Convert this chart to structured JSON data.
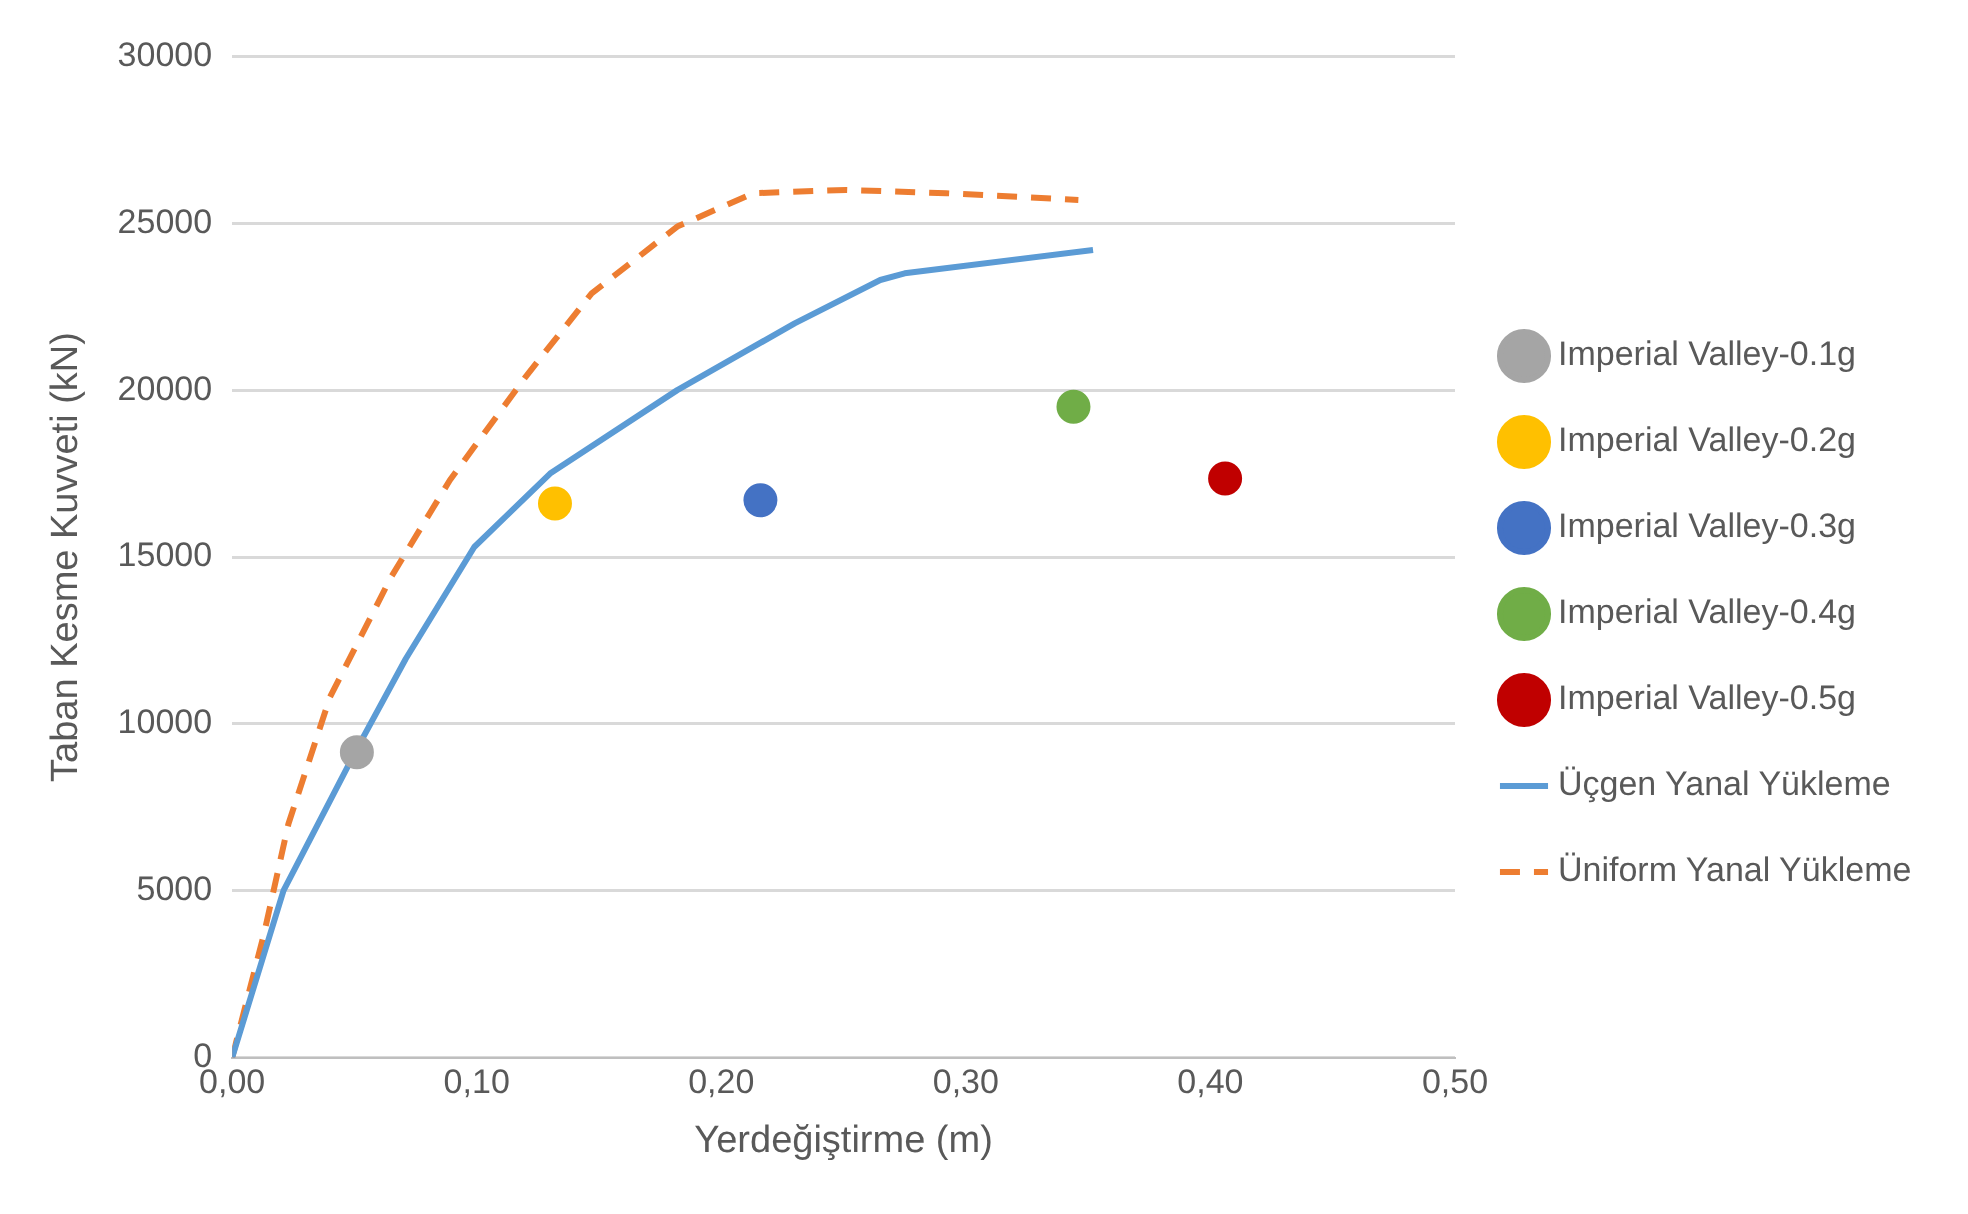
{
  "chart_data": {
    "type": "scatter",
    "xlabel": "Yerdeğiştirme (m)",
    "ylabel": "Taban Kesme Kuvveti (kN)",
    "xlim": [
      0,
      0.5
    ],
    "xticks": [
      {
        "value": 0,
        "label": "0,00"
      },
      {
        "value": 0.1,
        "label": "0,10"
      },
      {
        "value": 0.2,
        "label": "0,20"
      },
      {
        "value": 0.3,
        "label": "0,30"
      },
      {
        "value": 0.4,
        "label": "0,40"
      },
      {
        "value": 0.5,
        "label": "0,50"
      }
    ],
    "ylim": [
      0,
      30000
    ],
    "yticks": [
      0,
      5000,
      10000,
      15000,
      20000,
      25000,
      30000
    ],
    "grid": "y",
    "legend": "right",
    "marker": "circle",
    "series": [
      {
        "name": "Imperial Valley-0.1g",
        "color": "#a5a5a5",
        "x": [
          0.051
        ],
        "values": [
          9150
        ]
      },
      {
        "name": "Imperial Valley-0.2g",
        "color": "#ffc000",
        "x": [
          0.132
        ],
        "values": [
          16600
        ]
      },
      {
        "name": "Imperial Valley-0.3g",
        "color": "#4472c4",
        "x": [
          0.216
        ],
        "values": [
          16700
        ]
      },
      {
        "name": "Imperial Valley-0.4g",
        "color": "#70ad47",
        "x": [
          0.344
        ],
        "values": [
          19500
        ]
      },
      {
        "name": "Imperial Valley-0.5g",
        "color": "#c00000",
        "x": [
          0.406
        ],
        "values": [
          17350
        ]
      },
      {
        "name": "Üçgen Yanal Yükleme",
        "type": "line",
        "marker": "none",
        "line_style": "solid",
        "color": "#5b9bd5",
        "x": [
          0,
          0.021,
          0.051,
          0.071,
          0.099,
          0.13,
          0.182,
          0.23,
          0.265,
          0.275,
          0.352
        ],
        "values": [
          0,
          5000,
          9250,
          11950,
          15300,
          17500,
          20000,
          22000,
          23300,
          23500,
          24200
        ]
      },
      {
        "name": "Üniform Yanal Yükleme",
        "type": "line",
        "marker": "none",
        "line_style": "dashed",
        "color": "#ed7d31",
        "x": [
          0,
          0.013,
          0.023,
          0.04,
          0.065,
          0.089,
          0.12,
          0.147,
          0.182,
          0.213,
          0.251,
          0.292,
          0.346
        ],
        "values": [
          0,
          3700,
          7000,
          10800,
          14400,
          17300,
          20400,
          22900,
          24900,
          25900,
          26000,
          25900,
          25700
        ]
      }
    ]
  }
}
